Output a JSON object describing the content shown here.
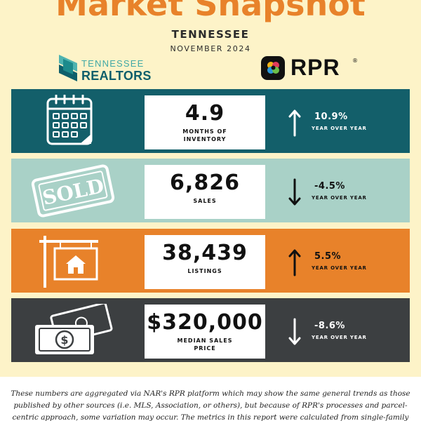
{
  "header": {
    "title": "Market Snapshot",
    "state": "TENNESSEE",
    "month": "NOVEMBER 2024"
  },
  "logos": {
    "tn_top": "TENNESSEE",
    "tn_bottom": "REALTORS",
    "rpr": "RPR",
    "rpr_reg": "®"
  },
  "metrics": [
    {
      "icon": "calendar-icon",
      "value": "4.9",
      "label": "MONTHS OF INVENTORY",
      "change": "10.9%",
      "direction": "up",
      "period": "YEAR OVER YEAR",
      "color": "#135f6a"
    },
    {
      "icon": "sold-stamp-icon",
      "value": "6,826",
      "label": "SALES",
      "change": "-4.5%",
      "direction": "down",
      "period": "YEAR OVER YEAR",
      "color": "#a9d1c7",
      "stamp_text": "SOLD"
    },
    {
      "icon": "house-sign-icon",
      "value": "38,439",
      "label": "LISTINGS",
      "change": "5.5%",
      "direction": "up",
      "period": "YEAR OVER YEAR",
      "color": "#e8822a"
    },
    {
      "icon": "money-icon",
      "value": "$320,000",
      "label": "MEDIAN SALES PRICE",
      "change": "-8.6%",
      "direction": "down",
      "period": "YEAR OVER YEAR",
      "color": "#3c3f41"
    }
  ],
  "disclaimer": "These numbers are aggregated via NAR's RPR platform which may show the same general trends as those published by other sources (i.e. MLS, Association, or others), but because of RPR's processes and parcel-centric approach, some variation may occur. The metrics in this report were calculated from single-family and condominium listings. The"
}
